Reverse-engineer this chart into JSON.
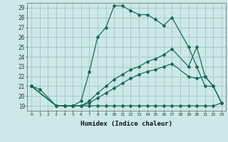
{
  "xlabel": "Humidex (Indice chaleur)",
  "background_color": "#cce8e8",
  "grid_color": "#9bbfbf",
  "line_color": "#1a6b5a",
  "xlim": [
    -0.5,
    23.5
  ],
  "ylim": [
    18.5,
    29.5
  ],
  "xticks": [
    0,
    1,
    2,
    3,
    4,
    5,
    6,
    7,
    8,
    9,
    10,
    11,
    12,
    13,
    14,
    15,
    16,
    17,
    18,
    19,
    20,
    21,
    22,
    23
  ],
  "yticks": [
    19,
    20,
    21,
    22,
    23,
    24,
    25,
    26,
    27,
    28,
    29
  ],
  "series": [
    {
      "x": [
        0,
        1,
        3,
        4,
        5,
        6,
        7,
        8,
        9,
        10,
        11,
        12,
        13,
        14,
        15,
        16,
        17,
        19,
        20,
        21,
        22
      ],
      "y": [
        21,
        20.7,
        19.0,
        19.0,
        19.0,
        19.5,
        22.5,
        26.0,
        27.0,
        29.2,
        29.2,
        28.7,
        28.3,
        28.3,
        27.8,
        27.2,
        28.0,
        25.0,
        23.0,
        21.0,
        21.0
      ]
    },
    {
      "x": [
        0,
        3,
        4,
        5,
        6,
        7,
        8,
        9,
        10,
        11,
        12,
        13,
        14,
        15,
        16,
        17,
        18,
        19,
        20,
        21,
        22,
        23
      ],
      "y": [
        21,
        19.0,
        19.0,
        19.0,
        19.0,
        19.0,
        19.0,
        19.0,
        19.0,
        19.0,
        19.0,
        19.0,
        19.0,
        19.0,
        19.0,
        19.0,
        19.0,
        19.0,
        19.0,
        19.0,
        19.0,
        19.3
      ]
    },
    {
      "x": [
        0,
        3,
        4,
        5,
        6,
        7,
        8,
        9,
        10,
        11,
        12,
        13,
        14,
        15,
        16,
        17,
        19,
        20,
        21,
        22,
        23
      ],
      "y": [
        21,
        19.0,
        19.0,
        19.0,
        19.0,
        19.3,
        19.8,
        20.3,
        20.8,
        21.3,
        21.8,
        22.2,
        22.5,
        22.7,
        23.0,
        23.3,
        22.0,
        21.8,
        22.0,
        21.0,
        19.3
      ]
    },
    {
      "x": [
        0,
        3,
        4,
        5,
        6,
        7,
        8,
        9,
        10,
        11,
        12,
        13,
        14,
        15,
        16,
        17,
        19,
        20,
        21,
        22,
        23
      ],
      "y": [
        21,
        19.0,
        19.0,
        19.0,
        19.0,
        19.5,
        20.3,
        21.0,
        21.7,
        22.2,
        22.7,
        23.0,
        23.5,
        23.8,
        24.2,
        24.8,
        23.0,
        25.0,
        22.0,
        21.0,
        19.3
      ]
    }
  ]
}
